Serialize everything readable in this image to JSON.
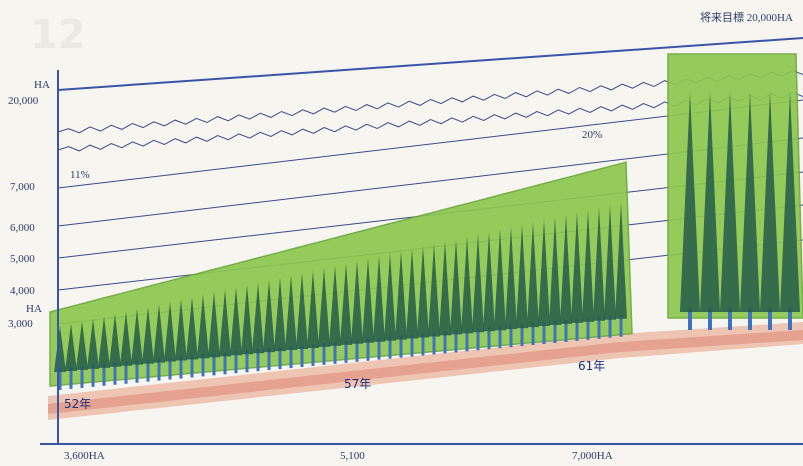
{
  "chart_data": {
    "type": "area",
    "target_label": "将来目標 20,000HA",
    "y_axis": {
      "unit_top": "HA",
      "unit_bottom": "HA",
      "ticks": [
        "20,000",
        "7,000",
        "6,000",
        "5,000",
        "4,000",
        "3,000"
      ],
      "scale_break": true
    },
    "x_tick_labels": [
      "3,600HA",
      "5,100",
      "7,000HA"
    ],
    "point_labels": [
      "52年",
      "57年",
      "61年"
    ],
    "percent_labels": [
      "11%",
      "20%"
    ],
    "background_number": "12",
    "series": [
      {
        "points": [
          {
            "x": "52年",
            "y": 3600
          },
          {
            "x": "57年",
            "y": 5100
          },
          {
            "x": "61年",
            "y": 7000
          },
          {
            "x": "将来",
            "y": 20000
          }
        ]
      }
    ],
    "colors": {
      "foliage": "#8cc84e",
      "trunk": "#245c4a",
      "stem": "#3f73c0",
      "ground": "#e89a82",
      "axis": "#3855a8"
    }
  }
}
